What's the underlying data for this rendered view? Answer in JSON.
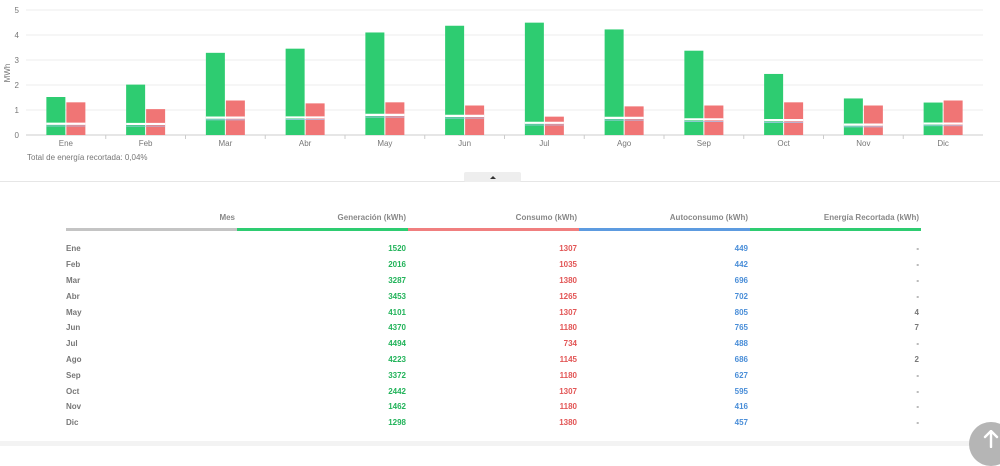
{
  "chart_data": {
    "type": "bar",
    "ylabel": "MWh",
    "ylim": [
      0,
      5
    ],
    "yticks": [
      "0",
      "1",
      "2",
      "3",
      "4",
      "5"
    ],
    "categories": [
      "Ene",
      "Feb",
      "Mar",
      "Abr",
      "May",
      "Jun",
      "Jul",
      "Ago",
      "Sep",
      "Oct",
      "Nov",
      "Dic"
    ],
    "series": [
      {
        "name": "Generación",
        "color": "#2ecc71",
        "values": [
          1.52,
          2.016,
          3.287,
          3.453,
          4.101,
          4.37,
          4.494,
          4.223,
          3.372,
          2.442,
          1.462,
          1.298
        ]
      },
      {
        "name": "Consumo",
        "color": "#f07575",
        "values": [
          1.307,
          1.035,
          1.38,
          1.265,
          1.307,
          1.18,
          0.734,
          1.145,
          1.18,
          1.307,
          1.18,
          1.38
        ]
      },
      {
        "name": "Autoconsumo",
        "color": "#ffffff",
        "values": [
          0.449,
          0.442,
          0.696,
          0.702,
          0.805,
          0.765,
          0.488,
          0.686,
          0.627,
          0.595,
          0.416,
          0.457
        ]
      }
    ]
  },
  "note": "Total de energía recortada: 0,04%",
  "table": {
    "headers": {
      "mes": "Mes",
      "gen": "Generación (kWh)",
      "con": "Consumo (kWh)",
      "auto": "Autoconsumo (kWh)",
      "rec": "Energía Recortada (kWh)"
    },
    "rows": [
      {
        "mes": "Ene",
        "gen": "1520",
        "con": "1307",
        "auto": "449",
        "rec": "-"
      },
      {
        "mes": "Feb",
        "gen": "2016",
        "con": "1035",
        "auto": "442",
        "rec": "-"
      },
      {
        "mes": "Mar",
        "gen": "3287",
        "con": "1380",
        "auto": "696",
        "rec": "-"
      },
      {
        "mes": "Abr",
        "gen": "3453",
        "con": "1265",
        "auto": "702",
        "rec": "-"
      },
      {
        "mes": "May",
        "gen": "4101",
        "con": "1307",
        "auto": "805",
        "rec": "4"
      },
      {
        "mes": "Jun",
        "gen": "4370",
        "con": "1180",
        "auto": "765",
        "rec": "7"
      },
      {
        "mes": "Jul",
        "gen": "4494",
        "con": "734",
        "auto": "488",
        "rec": "-"
      },
      {
        "mes": "Ago",
        "gen": "4223",
        "con": "1145",
        "auto": "686",
        "rec": "2"
      },
      {
        "mes": "Sep",
        "gen": "3372",
        "con": "1180",
        "auto": "627",
        "rec": "-"
      },
      {
        "mes": "Oct",
        "gen": "2442",
        "con": "1307",
        "auto": "595",
        "rec": "-"
      },
      {
        "mes": "Nov",
        "gen": "1462",
        "con": "1180",
        "auto": "416",
        "rec": "-"
      },
      {
        "mes": "Dic",
        "gen": "1298",
        "con": "1380",
        "auto": "457",
        "rec": "-"
      }
    ]
  },
  "icons": {
    "collapse": "chevron-up-icon",
    "scroll_top": "arrow-up-icon"
  }
}
